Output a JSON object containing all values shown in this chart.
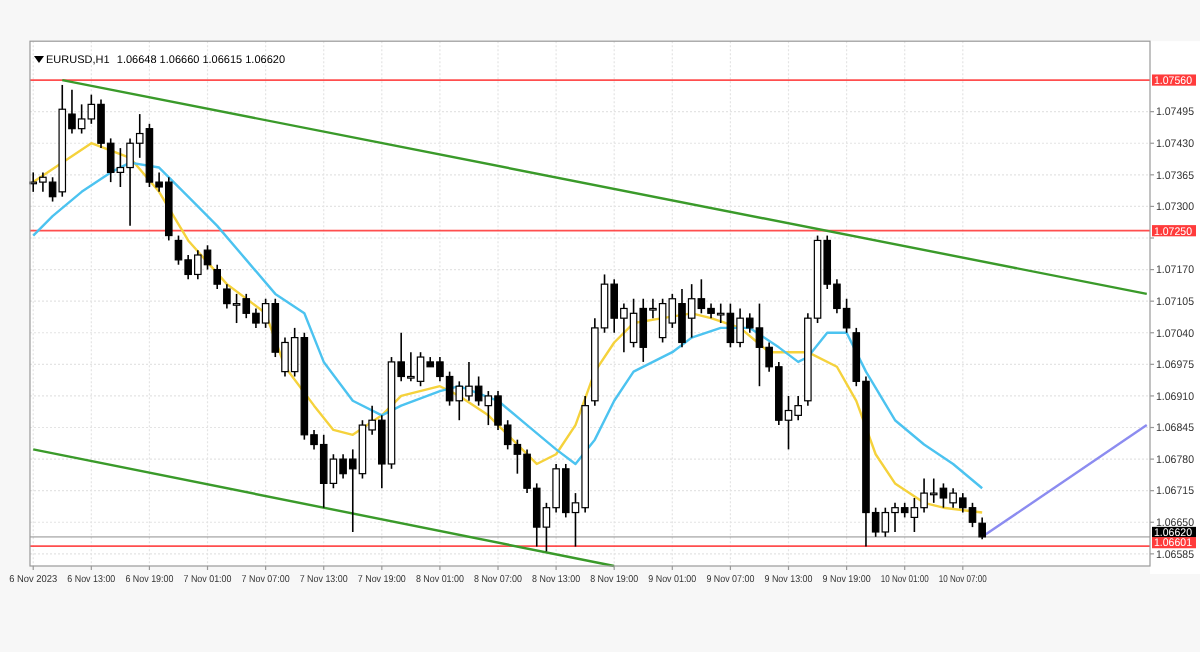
{
  "chart_data": {
    "type": "candlestick",
    "title": "EURUSD,H1",
    "subtitle": "1.06648 1.06660 1.06615 1.06620",
    "x": [
      "2023-11-06T07:00",
      "2023-11-06T08:00",
      "2023-11-06T09:00",
      "2023-11-06T10:00",
      "2023-11-06T11:00",
      "2023-11-06T12:00",
      "2023-11-06T13:00",
      "2023-11-06T14:00",
      "2023-11-06T15:00",
      "2023-11-06T16:00",
      "2023-11-06T17:00",
      "2023-11-06T18:00",
      "2023-11-06T19:00",
      "2023-11-06T20:00",
      "2023-11-06T21:00",
      "2023-11-06T22:00",
      "2023-11-06T23:00",
      "2023-11-07T00:00",
      "2023-11-07T01:00",
      "2023-11-07T02:00",
      "2023-11-07T03:00",
      "2023-11-07T04:00",
      "2023-11-07T05:00",
      "2023-11-07T06:00",
      "2023-11-07T07:00",
      "2023-11-07T08:00",
      "2023-11-07T09:00",
      "2023-11-07T10:00",
      "2023-11-07T11:00",
      "2023-11-07T12:00",
      "2023-11-07T13:00",
      "2023-11-07T14:00",
      "2023-11-07T15:00",
      "2023-11-07T16:00",
      "2023-11-07T17:00",
      "2023-11-07T18:00",
      "2023-11-07T19:00",
      "2023-11-07T20:00",
      "2023-11-07T21:00",
      "2023-11-07T22:00",
      "2023-11-07T23:00",
      "2023-11-08T00:00",
      "2023-11-08T01:00",
      "2023-11-08T02:00",
      "2023-11-08T03:00",
      "2023-11-08T04:00",
      "2023-11-08T05:00",
      "2023-11-08T06:00",
      "2023-11-08T07:00",
      "2023-11-08T08:00",
      "2023-11-08T09:00",
      "2023-11-08T10:00",
      "2023-11-08T11:00",
      "2023-11-08T12:00",
      "2023-11-08T13:00",
      "2023-11-08T14:00",
      "2023-11-08T15:00",
      "2023-11-08T16:00",
      "2023-11-08T17:00",
      "2023-11-08T18:00",
      "2023-11-08T19:00",
      "2023-11-08T20:00",
      "2023-11-08T21:00",
      "2023-11-08T22:00",
      "2023-11-08T23:00",
      "2023-11-09T00:00",
      "2023-11-09T01:00",
      "2023-11-09T02:00",
      "2023-11-09T03:00",
      "2023-11-09T04:00",
      "2023-11-09T05:00",
      "2023-11-09T06:00",
      "2023-11-09T07:00",
      "2023-11-09T08:00",
      "2023-11-09T09:00",
      "2023-11-09T10:00",
      "2023-11-09T11:00",
      "2023-11-09T12:00",
      "2023-11-09T13:00",
      "2023-11-09T14:00",
      "2023-11-09T15:00",
      "2023-11-09T16:00",
      "2023-11-09T17:00",
      "2023-11-09T18:00",
      "2023-11-09T19:00",
      "2023-11-09T20:00",
      "2023-11-09T21:00",
      "2023-11-09T22:00",
      "2023-11-09T23:00",
      "2023-11-10T00:00",
      "2023-11-10T01:00",
      "2023-11-10T02:00",
      "2023-11-10T03:00",
      "2023-11-10T04:00",
      "2023-11-10T05:00",
      "2023-11-10T06:00",
      "2023-11-10T07:00",
      "2023-11-10T08:00",
      "2023-11-10T09:00"
    ],
    "ohlc": [
      [
        1.0735,
        1.0737,
        1.0733,
        1.0735
      ],
      [
        1.0735,
        1.0737,
        1.0733,
        1.0736
      ],
      [
        1.0735,
        1.0736,
        1.0731,
        1.0732
      ],
      [
        1.0733,
        1.0755,
        1.0732,
        1.075
      ],
      [
        1.0749,
        1.0754,
        1.0745,
        1.0746
      ],
      [
        1.0746,
        1.0751,
        1.0745,
        1.0748
      ],
      [
        1.0748,
        1.0753,
        1.0747,
        1.0751
      ],
      [
        1.0751,
        1.0752,
        1.0742,
        1.0743
      ],
      [
        1.0743,
        1.0744,
        1.0735,
        1.0737
      ],
      [
        1.0737,
        1.0742,
        1.0734,
        1.0738
      ],
      [
        1.0738,
        1.0744,
        1.0726,
        1.0743
      ],
      [
        1.0743,
        1.0749,
        1.074,
        1.0745
      ],
      [
        1.0746,
        1.0747,
        1.0734,
        1.0735
      ],
      [
        1.0735,
        1.0737,
        1.0733,
        1.0734
      ],
      [
        1.0735,
        1.0736,
        1.0723,
        1.0724
      ],
      [
        1.0723,
        1.0724,
        1.0718,
        1.0719
      ],
      [
        1.0719,
        1.072,
        1.0715,
        1.0716
      ],
      [
        1.0716,
        1.0721,
        1.0715,
        1.072
      ],
      [
        1.0721,
        1.0722,
        1.0717,
        1.0718
      ],
      [
        1.0717,
        1.0718,
        1.0713,
        1.0714
      ],
      [
        1.0713,
        1.0714,
        1.0709,
        1.071
      ],
      [
        1.071,
        1.0712,
        1.0706,
        1.071
      ],
      [
        1.0711,
        1.0712,
        1.0707,
        1.0708
      ],
      [
        1.0708,
        1.0709,
        1.0705,
        1.0706
      ],
      [
        1.0706,
        1.0711,
        1.0705,
        1.071
      ],
      [
        1.071,
        1.0711,
        1.0699,
        1.07
      ],
      [
        1.0696,
        1.0703,
        1.0695,
        1.0702
      ],
      [
        1.0696,
        1.0705,
        1.0695,
        1.0703
      ],
      [
        1.0703,
        1.0704,
        1.0682,
        1.0683
      ],
      [
        1.0683,
        1.0684,
        1.068,
        1.0681
      ],
      [
        1.0681,
        1.0683,
        1.0668,
        1.0673
      ],
      [
        1.0673,
        1.0679,
        1.0672,
        1.0678
      ],
      [
        1.0678,
        1.0679,
        1.0674,
        1.0675
      ],
      [
        1.0678,
        1.068,
        1.0663,
        1.0676
      ],
      [
        1.0675,
        1.0686,
        1.0674,
        1.0685
      ],
      [
        1.0684,
        1.0689,
        1.0683,
        1.0686
      ],
      [
        1.0686,
        1.0687,
        1.0672,
        1.0677
      ],
      [
        1.0677,
        1.0699,
        1.0676,
        1.0698
      ],
      [
        1.0698,
        1.0704,
        1.0694,
        1.0695
      ],
      [
        1.0695,
        1.07,
        1.0694,
        1.0695
      ],
      [
        1.0694,
        1.07,
        1.0693,
        1.0699
      ],
      [
        1.0698,
        1.0699,
        1.0697,
        1.0697
      ],
      [
        1.0698,
        1.0699,
        1.0694,
        1.0695
      ],
      [
        1.0695,
        1.0696,
        1.0689,
        1.069
      ],
      [
        1.069,
        1.0694,
        1.0686,
        1.0693
      ],
      [
        1.0691,
        1.0698,
        1.069,
        1.0693
      ],
      [
        1.0693,
        1.0695,
        1.0689,
        1.069
      ],
      [
        1.0689,
        1.0692,
        1.0685,
        1.0691
      ],
      [
        1.0691,
        1.0692,
        1.0684,
        1.0685
      ],
      [
        1.0685,
        1.0686,
        1.068,
        1.0681
      ],
      [
        1.0681,
        1.0682,
        1.0675,
        1.0679
      ],
      [
        1.0679,
        1.068,
        1.0671,
        1.0672
      ],
      [
        1.0672,
        1.0673,
        1.066,
        1.0664
      ],
      [
        1.0664,
        1.0669,
        1.0659,
        1.0668
      ],
      [
        1.0668,
        1.0677,
        1.0667,
        1.0676
      ],
      [
        1.0676,
        1.0677,
        1.0666,
        1.0667
      ],
      [
        1.0667,
        1.0671,
        1.066,
        1.0669
      ],
      [
        1.0668,
        1.0691,
        1.0667,
        1.0689
      ],
      [
        1.069,
        1.0707,
        1.0689,
        1.0705
      ],
      [
        1.0705,
        1.0716,
        1.0704,
        1.0714
      ],
      [
        1.0714,
        1.0715,
        1.0704,
        1.0707
      ],
      [
        1.0707,
        1.071,
        1.07,
        1.0709
      ],
      [
        1.0702,
        1.0711,
        1.0701,
        1.0708
      ],
      [
        1.0709,
        1.0711,
        1.0698,
        1.0701
      ],
      [
        1.0709,
        1.0711,
        1.0707,
        1.0709
      ],
      [
        1.0703,
        1.0711,
        1.0702,
        1.071
      ],
      [
        1.0706,
        1.0712,
        1.0705,
        1.0711
      ],
      [
        1.071,
        1.0713,
        1.0701,
        1.0702
      ],
      [
        1.0707,
        1.0714,
        1.0703,
        1.0711
      ],
      [
        1.0711,
        1.0715,
        1.0708,
        1.0709
      ],
      [
        1.0709,
        1.071,
        1.0707,
        1.0708
      ],
      [
        1.0708,
        1.071,
        1.0706,
        1.0708
      ],
      [
        1.0708,
        1.071,
        1.0701,
        1.0702
      ],
      [
        1.0702,
        1.0709,
        1.0701,
        1.0707
      ],
      [
        1.0707,
        1.0708,
        1.0704,
        1.0705
      ],
      [
        1.0705,
        1.071,
        1.0693,
        1.0701
      ],
      [
        1.0701,
        1.0702,
        1.0696,
        1.0697
      ],
      [
        1.0697,
        1.0698,
        1.0685,
        1.0686
      ],
      [
        1.0686,
        1.0691,
        1.068,
        1.0688
      ],
      [
        1.0687,
        1.0691,
        1.0686,
        1.0689
      ],
      [
        1.069,
        1.0708,
        1.0689,
        1.0707
      ],
      [
        1.0707,
        1.0724,
        1.0706,
        1.0723
      ],
      [
        1.0723,
        1.0724,
        1.0713,
        1.0714
      ],
      [
        1.0714,
        1.0715,
        1.0708,
        1.0709
      ],
      [
        1.0709,
        1.0711,
        1.0704,
        1.0705
      ],
      [
        1.0704,
        1.0705,
        1.0693,
        1.0694
      ],
      [
        1.0694,
        1.0695,
        1.066,
        1.0667
      ],
      [
        1.0667,
        1.0668,
        1.0662,
        1.0663
      ],
      [
        1.0663,
        1.0668,
        1.0662,
        1.0667
      ],
      [
        1.0667,
        1.0669,
        1.0663,
        1.0668
      ],
      [
        1.0668,
        1.0669,
        1.0666,
        1.0667
      ],
      [
        1.0666,
        1.067,
        1.0663,
        1.0668
      ],
      [
        1.0668,
        1.0674,
        1.0667,
        1.0671
      ],
      [
        1.0671,
        1.0674,
        1.0669,
        1.0671
      ],
      [
        1.0672,
        1.0673,
        1.0668,
        1.067
      ],
      [
        1.0669,
        1.0672,
        1.0668,
        1.0671
      ],
      [
        1.067,
        1.0671,
        1.0667,
        1.0668
      ],
      [
        1.0668,
        1.0669,
        1.0664,
        1.0665
      ],
      [
        1.06648,
        1.0666,
        1.06615,
        1.0662
      ]
    ],
    "series": [
      {
        "type": "line",
        "color": "#f5d23c",
        "x": [
          "2023-11-06T07:00",
          "2023-11-06T13:00",
          "2023-11-06T17:00",
          "2023-11-06T20:00",
          "2023-11-06T23:00",
          "2023-11-07T03:00",
          "2023-11-07T07:00",
          "2023-11-07T09:00",
          "2023-11-07T12:00",
          "2023-11-07T14:00",
          "2023-11-07T16:00",
          "2023-11-07T19:00",
          "2023-11-07T21:00",
          "2023-11-08T01:00",
          "2023-11-08T03:00",
          "2023-11-08T06:00",
          "2023-11-08T09:00",
          "2023-11-08T11:00",
          "2023-11-08T13:00",
          "2023-11-08T15:00",
          "2023-11-08T17:00",
          "2023-11-08T19:00",
          "2023-11-08T21:00",
          "2023-11-09T00:00",
          "2023-11-09T03:00",
          "2023-11-09T05:00",
          "2023-11-09T08:00",
          "2023-11-09T11:00",
          "2023-11-09T13:00",
          "2023-11-09T15:00",
          "2023-11-09T18:00",
          "2023-11-09T20:00",
          "2023-11-09T22:00",
          "2023-11-10T00:00",
          "2023-11-10T03:00",
          "2023-11-10T05:00",
          "2023-11-10T09:00"
        ],
        "values": [
          1.0735,
          1.0743,
          1.074,
          1.0733,
          1.0723,
          1.0714,
          1.0708,
          1.0697,
          1.0689,
          1.0684,
          1.0683,
          1.0687,
          1.0691,
          1.0693,
          1.0691,
          1.0687,
          1.0681,
          1.0677,
          1.0679,
          1.0685,
          1.0696,
          1.0702,
          1.0706,
          1.0707,
          1.0708,
          1.0707,
          1.0705,
          1.07,
          1.07,
          1.07,
          1.0697,
          1.069,
          1.0679,
          1.0673,
          1.0669,
          1.0668,
          1.0667
        ]
      },
      {
        "type": "line",
        "color": "#4cc3f0",
        "x": [
          "2023-11-06T07:00",
          "2023-11-06T09:00",
          "2023-11-06T12:00",
          "2023-11-06T15:00",
          "2023-11-06T17:00",
          "2023-11-06T20:00",
          "2023-11-06T23:00",
          "2023-11-07T02:00",
          "2023-11-07T05:00",
          "2023-11-07T08:00",
          "2023-11-07T11:00",
          "2023-11-07T13:00",
          "2023-11-07T16:00",
          "2023-11-07T19:00",
          "2023-11-07T21:00",
          "2023-11-08T01:00",
          "2023-11-08T03:00",
          "2023-11-08T07:00",
          "2023-11-08T10:00",
          "2023-11-08T13:00",
          "2023-11-08T15:00",
          "2023-11-08T17:00",
          "2023-11-08T19:00",
          "2023-11-08T21:00",
          "2023-11-09T01:00",
          "2023-11-09T03:00",
          "2023-11-09T06:00",
          "2023-11-09T09:00",
          "2023-11-09T12:00",
          "2023-11-09T14:00",
          "2023-11-09T15:00",
          "2023-11-09T17:00",
          "2023-11-09T19:00",
          "2023-11-09T21:00",
          "2023-11-10T00:00",
          "2023-11-10T03:00",
          "2023-11-10T06:00",
          "2023-11-10T09:00"
        ],
        "values": [
          1.0724,
          1.0728,
          1.0733,
          1.0737,
          1.0739,
          1.0738,
          1.0732,
          1.0726,
          1.0719,
          1.0712,
          1.0708,
          1.0698,
          1.069,
          1.0687,
          1.0689,
          1.0692,
          1.0693,
          1.069,
          1.0685,
          1.068,
          1.0677,
          1.0682,
          1.069,
          1.0696,
          1.07,
          1.0703,
          1.0705,
          1.0705,
          1.0701,
          1.0698,
          1.0699,
          1.0704,
          1.0704,
          1.0696,
          1.0686,
          1.0681,
          1.0677,
          1.0672
        ]
      },
      {
        "type": "line",
        "color": "#3a9a2a",
        "x": [
          "2023-11-06T10:00",
          "2023-11-11T02:00"
        ],
        "values": [
          1.0756,
          1.0712
        ]
      },
      {
        "type": "line",
        "color": "#3a9a2a",
        "x": [
          "2023-11-06T07:00",
          "2023-11-08T19:00"
        ],
        "values": [
          1.068,
          1.0656
        ]
      },
      {
        "type": "line",
        "color": "#8c8cf0",
        "x": [
          "2023-11-10T09:00",
          "2023-11-11T02:00"
        ],
        "values": [
          1.0662,
          1.0685
        ]
      }
    ],
    "xlim": [
      "2023-11-06T06:40",
      "2023-11-11T02:20"
    ],
    "xticks": [
      {
        "value": "2023-11-06T07:00",
        "label": "6 Nov 2023"
      },
      {
        "value": "2023-11-06T13:00",
        "label": "6 Nov 13:00"
      },
      {
        "value": "2023-11-06T19:00",
        "label": "6 Nov 19:00"
      },
      {
        "value": "2023-11-07T01:00",
        "label": "7 Nov 01:00"
      },
      {
        "value": "2023-11-07T07:00",
        "label": "7 Nov 07:00"
      },
      {
        "value": "2023-11-07T13:00",
        "label": "7 Nov 13:00"
      },
      {
        "value": "2023-11-07T19:00",
        "label": "7 Nov 19:00"
      },
      {
        "value": "2023-11-08T01:00",
        "label": "8 Nov 01:00"
      },
      {
        "value": "2023-11-08T07:00",
        "label": "8 Nov 07:00"
      },
      {
        "value": "2023-11-08T13:00",
        "label": "8 Nov 13:00"
      },
      {
        "value": "2023-11-08T19:00",
        "label": "8 Nov 19:00"
      },
      {
        "value": "2023-11-09T01:00",
        "label": "9 Nov 01:00"
      },
      {
        "value": "2023-11-09T07:00",
        "label": "9 Nov 07:00"
      },
      {
        "value": "2023-11-09T13:00",
        "label": "9 Nov 13:00"
      },
      {
        "value": "2023-11-09T19:00",
        "label": "9 Nov 19:00"
      },
      {
        "value": "2023-11-10T01:00",
        "label": "10 Nov 01:00"
      },
      {
        "value": "2023-11-10T07:00",
        "label": "10 Nov 07:00"
      }
    ],
    "ylim": [
      1.0656,
      1.0764
    ],
    "yticks": [
      1.06585,
      {
        "value": 1.0665,
        "label": "1.06650"
      },
      1.06715,
      {
        "value": 1.0678,
        "label": "1.06780"
      },
      1.06845,
      {
        "value": 1.0691,
        "label": "1.06910"
      },
      1.06975,
      {
        "value": 1.0704,
        "label": "1.07040"
      },
      1.07105,
      {
        "value": 1.0717,
        "label": "1.07170"
      },
      {
        "value": 1.07235,
        "label": null
      },
      {
        "value": 1.073,
        "label": "1.07300"
      },
      1.07365,
      {
        "value": 1.0743,
        "label": "1.07430"
      },
      1.07495
    ],
    "ref_lines": [
      {
        "axis": "y",
        "value": 1.0756,
        "label": "1.07560",
        "color": "#ff3b3b"
      },
      {
        "axis": "y",
        "value": 1.0725,
        "label": "1.07250",
        "color": "#ff3b3b"
      },
      {
        "axis": "y",
        "value": 1.06601,
        "label": "1.06601",
        "color": "#ff3b3b"
      },
      {
        "axis": "y",
        "value": 1.0662,
        "label": "1.06620",
        "color": "#000000"
      }
    ],
    "grid": true
  }
}
